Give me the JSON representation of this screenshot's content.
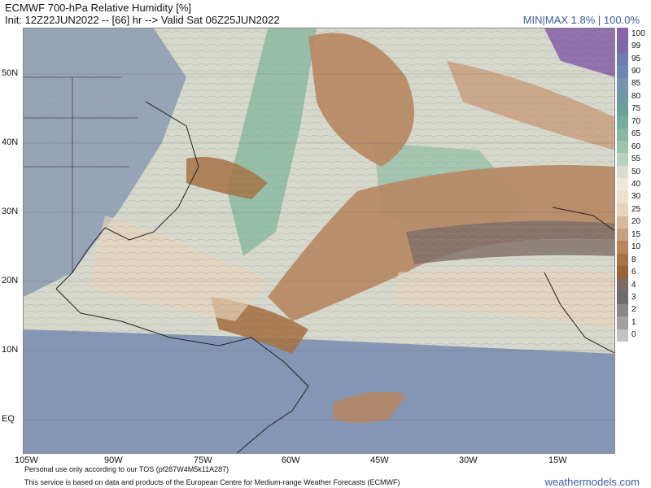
{
  "header": {
    "title": "ECMWF 700-hPa Relative Humidity [%]",
    "subtitle": "Init: 12Z22JUN2022 -- [66] hr --> Valid Sat 06Z25JUN2022",
    "minmax": "MIN|MAX 1.8% | 100.0%"
  },
  "map": {
    "lat_labels": [
      "50N",
      "40N",
      "30N",
      "20N",
      "10N",
      "EQ"
    ],
    "lon_labels": [
      "105W",
      "90W",
      "75W",
      "60W",
      "45W",
      "30W",
      "15W"
    ]
  },
  "colorbar": {
    "levels": [
      "100",
      "99",
      "95",
      "90",
      "85",
      "80",
      "75",
      "70",
      "65",
      "60",
      "55",
      "50",
      "40",
      "30",
      "25",
      "20",
      "15",
      "10",
      "8",
      "6",
      "4",
      "3",
      "2",
      "1",
      "0"
    ],
    "colors": [
      "#8a64a8",
      "#7a6aaa",
      "#6c7bb0",
      "#6f86b2",
      "#7793b2",
      "#6f97a4",
      "#6aa29a",
      "#74ae9c",
      "#85b9a3",
      "#9cc4ad",
      "#b9d1bf",
      "#dcdcd2",
      "#efe6dc",
      "#eee0cf",
      "#e6d3bb",
      "#d9b99a",
      "#c9a07d",
      "#b8865f",
      "#a77244",
      "#9a6337",
      "#7d6b66",
      "#6e6e6e",
      "#878787",
      "#a2a2a2",
      "#c2c2c2"
    ]
  },
  "footer": {
    "line1": "Personal use only according to our TOS (pf287W4M5k11A287)",
    "line2": "This service is based on data and products of the European Centre for Medium-range Weather Forecasts (ECMWF)",
    "brand": "weathermodels.com"
  }
}
